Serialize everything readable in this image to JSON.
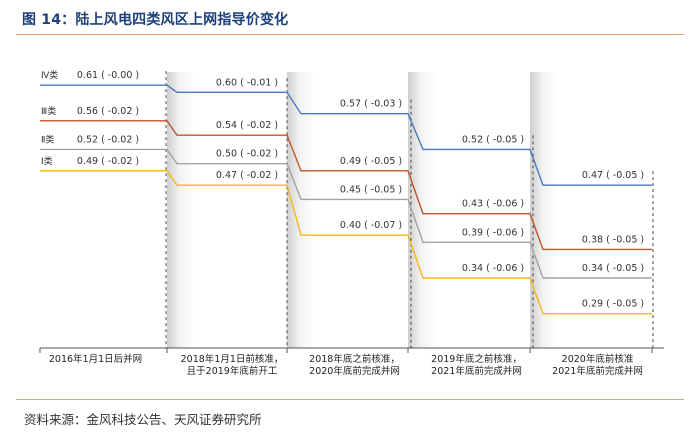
{
  "figure": {
    "title": "图 14：陆上风电四类风区上网指导价变化",
    "source": "资料来源：金风科技公告、天风证券研究所"
  },
  "chart_data": {
    "type": "line",
    "categories": [
      [
        "2016年1月1日后并网"
      ],
      [
        "2018年1月1日前核准，",
        "且于2019年底前开工"
      ],
      [
        "2018年底之前核准，",
        "2020年底前完成并网"
      ],
      [
        "2019年底之前核准，",
        "2021年底前完成并网"
      ],
      [
        "2020年底前核准",
        "2021年底前完成并网"
      ]
    ],
    "series": [
      {
        "name": "Ⅳ类",
        "color": "#4a78c2",
        "values": [
          0.61,
          0.6,
          0.57,
          0.52,
          0.47
        ],
        "labels": [
          "0.61 ( -0.00 )",
          "0.60 ( -0.01 )",
          "0.57 ( -0.03 )",
          "0.52 ( -0.05 )",
          "0.47 ( -0.05 )"
        ]
      },
      {
        "name": "Ⅲ类",
        "color": "#c0542b",
        "values": [
          0.56,
          0.54,
          0.49,
          0.43,
          0.38
        ],
        "labels": [
          "0.56 ( -0.02 )",
          "0.54 ( -0.02 )",
          "0.49 ( -0.05 )",
          "0.43 ( -0.06 )",
          "0.38 ( -0.05 )"
        ]
      },
      {
        "name": "Ⅱ类",
        "color": "#a3a3a3",
        "values": [
          0.52,
          0.5,
          0.45,
          0.39,
          0.34
        ],
        "labels": [
          "0.52 ( -0.02 )",
          "0.50 ( -0.02 )",
          "0.45 ( -0.05 )",
          "0.39 ( -0.06 )",
          "0.34 ( -0.05 )"
        ]
      },
      {
        "name": "Ⅰ类",
        "color": "#f2b81a",
        "values": [
          0.49,
          0.47,
          0.4,
          0.34,
          0.29
        ],
        "labels": [
          "0.49 ( -0.02 )",
          "0.47 ( -0.02 )",
          "0.40 ( -0.07 )",
          "0.34 ( -0.06 )",
          "0.29 ( -0.05 )"
        ]
      }
    ],
    "ylim": [
      0.27,
      0.62
    ],
    "legend": "left",
    "grid": false
  }
}
